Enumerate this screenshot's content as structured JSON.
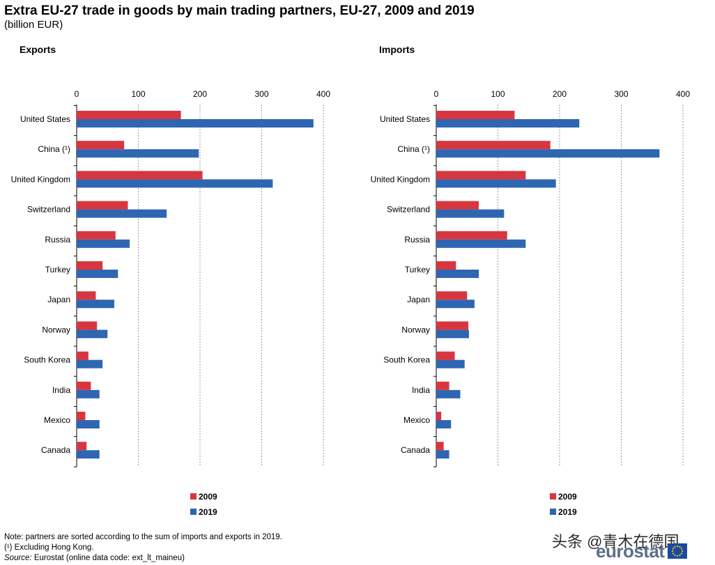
{
  "title": "Extra EU-27 trade in goods by main trading partners, EU-27, 2009 and 2019",
  "subtitle": "(billion EUR)",
  "chart_data": [
    {
      "type": "bar",
      "orientation": "horizontal",
      "title": "Exports",
      "categories": [
        "United States",
        "China (¹)",
        "United Kingdom",
        "Switzerland",
        "Russia",
        "Turkey",
        "Japan",
        "Norway",
        "South Korea",
        "India",
        "Mexico",
        "Canada"
      ],
      "series": [
        {
          "name": "2009",
          "color": "#d8363f",
          "values": [
            169,
            77,
            204,
            83,
            63,
            42,
            31,
            33,
            19,
            23,
            14,
            16
          ]
        },
        {
          "name": "2019",
          "color": "#2f66b2",
          "values": [
            384,
            198,
            318,
            146,
            86,
            67,
            61,
            50,
            42,
            37,
            37,
            37
          ]
        }
      ],
      "xlim": [
        0,
        400
      ],
      "xticks": [
        0,
        100,
        200,
        300,
        400
      ],
      "grid": true,
      "legend": "bottom-center"
    },
    {
      "type": "bar",
      "orientation": "horizontal",
      "title": "Imports",
      "categories": [
        "United States",
        "China (¹)",
        "United Kingdom",
        "Switzerland",
        "Russia",
        "Turkey",
        "Japan",
        "Norway",
        "South Korea",
        "India",
        "Mexico",
        "Canada"
      ],
      "series": [
        {
          "name": "2009",
          "color": "#d8363f",
          "values": [
            127,
            185,
            145,
            69,
            115,
            32,
            50,
            52,
            30,
            21,
            8,
            12
          ]
        },
        {
          "name": "2019",
          "color": "#2f66b2",
          "values": [
            232,
            362,
            194,
            110,
            145,
            69,
            62,
            53,
            46,
            39,
            24,
            21
          ]
        }
      ],
      "xlim": [
        0,
        400
      ],
      "xticks": [
        0,
        100,
        200,
        300,
        400
      ],
      "grid": true,
      "legend": "bottom-center"
    }
  ],
  "notes": {
    "line1": "Note: partners are sorted according to the sum of imports and exports in 2019.",
    "line2": "(¹) Excluding Hong Kong.",
    "source_label": "Source:",
    "source_text": "Eurostat (online data code: ext_lt_maineu)"
  },
  "watermark": "头条 @青木在德国",
  "logo": {
    "text": "eurostat"
  }
}
